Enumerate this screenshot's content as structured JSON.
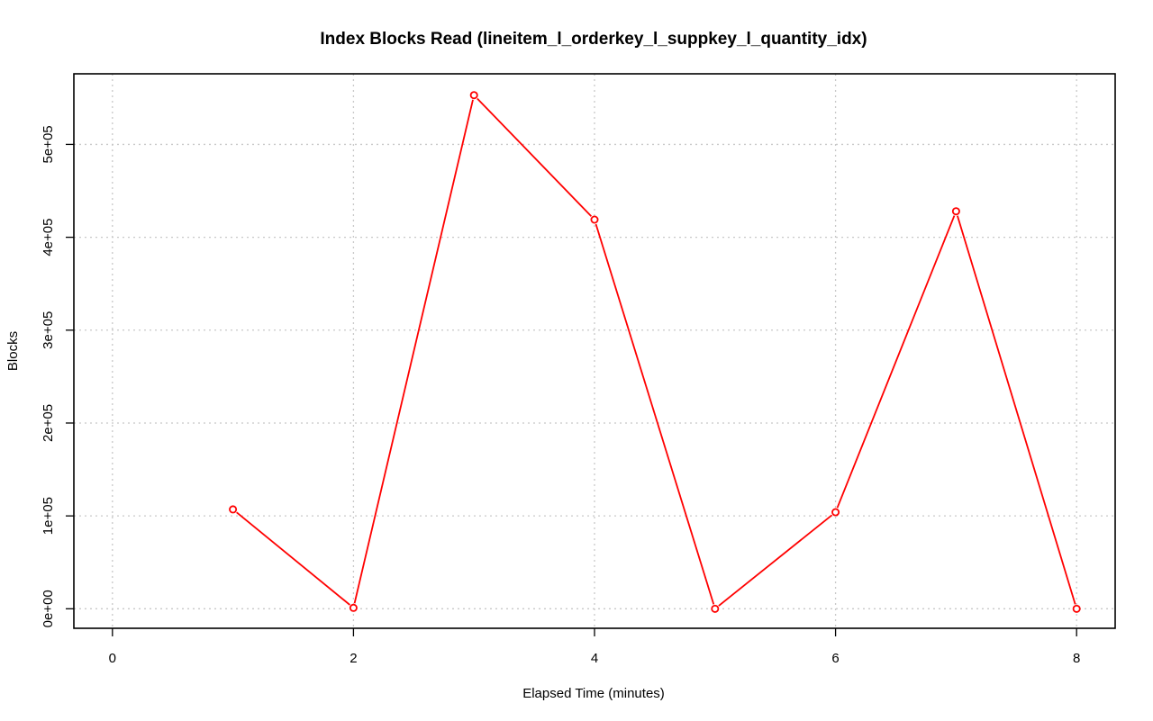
{
  "chart_data": {
    "type": "line",
    "title": "Index Blocks Read (lineitem_l_orderkey_l_suppkey_l_quantity_idx)",
    "xlabel": "Elapsed Time (minutes)",
    "ylabel": "Blocks",
    "x_ticks": [
      0,
      2,
      4,
      6,
      8
    ],
    "x_tick_labels": [
      "0",
      "2",
      "4",
      "6",
      "8"
    ],
    "y_ticks": [
      0,
      100000,
      200000,
      300000,
      400000,
      500000
    ],
    "y_tick_labels": [
      "0e+00",
      "1e+05",
      "2e+05",
      "3e+05",
      "4e+05",
      "5e+05"
    ],
    "xlim": [
      -0.32,
      8.32
    ],
    "ylim": [
      -21000,
      576000
    ],
    "grid": true,
    "series": [
      {
        "color": "#ff0000",
        "x": [
          1,
          2,
          3,
          4,
          5,
          6,
          7,
          8
        ],
        "y": [
          107000,
          1000,
          553000,
          419000,
          0,
          104000,
          428000,
          0
        ]
      }
    ]
  }
}
